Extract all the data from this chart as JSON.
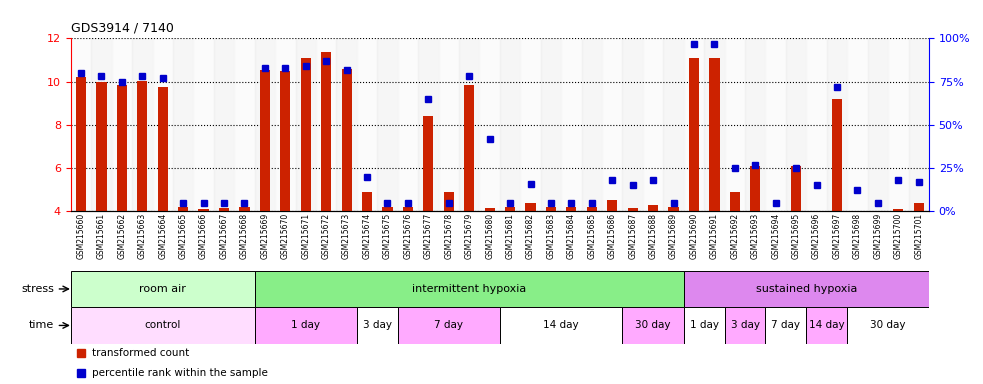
{
  "title": "GDS3914 / 7140",
  "samples": [
    "GSM215660",
    "GSM215661",
    "GSM215662",
    "GSM215663",
    "GSM215664",
    "GSM215665",
    "GSM215666",
    "GSM215667",
    "GSM215668",
    "GSM215669",
    "GSM215670",
    "GSM215671",
    "GSM215672",
    "GSM215673",
    "GSM215674",
    "GSM215675",
    "GSM215676",
    "GSM215677",
    "GSM215678",
    "GSM215679",
    "GSM215680",
    "GSM215681",
    "GSM215682",
    "GSM215683",
    "GSM215684",
    "GSM215685",
    "GSM215686",
    "GSM215687",
    "GSM215688",
    "GSM215689",
    "GSM215690",
    "GSM215691",
    "GSM215692",
    "GSM215693",
    "GSM215694",
    "GSM215695",
    "GSM215696",
    "GSM215697",
    "GSM215698",
    "GSM215699",
    "GSM215700",
    "GSM215701"
  ],
  "red_values": [
    10.2,
    10.0,
    9.85,
    10.05,
    9.75,
    4.2,
    4.1,
    4.15,
    4.2,
    10.55,
    10.5,
    11.1,
    11.35,
    10.6,
    4.9,
    4.2,
    4.2,
    8.4,
    4.9,
    9.85,
    4.15,
    4.2,
    4.4,
    4.2,
    4.2,
    4.2,
    4.5,
    4.15,
    4.3,
    4.2,
    11.1,
    11.1,
    4.9,
    6.1,
    4.0,
    6.1,
    4.0,
    9.2,
    4.0,
    4.0,
    4.1,
    4.4
  ],
  "blue_values": [
    80,
    78,
    75,
    78,
    77,
    5,
    5,
    5,
    5,
    83,
    83,
    84,
    87,
    82,
    20,
    5,
    5,
    65,
    5,
    78,
    42,
    5,
    16,
    5,
    5,
    5,
    18,
    15,
    18,
    5,
    97,
    97,
    25,
    27,
    5,
    25,
    15,
    72,
    12,
    5,
    18,
    17
  ],
  "ylim_left": [
    4,
    12
  ],
  "ylim_right": [
    0,
    100
  ],
  "yticks_left": [
    4,
    6,
    8,
    10,
    12
  ],
  "yticks_right": [
    0,
    25,
    50,
    75,
    100
  ],
  "ytick_labels_right": [
    "0%",
    "25%",
    "50%",
    "75%",
    "100%"
  ],
  "bar_color": "#cc2200",
  "dot_color": "#0000cc",
  "bg_color": "#f0f0f0",
  "stress_groups": [
    {
      "label": "room air",
      "start": 0,
      "end": 9,
      "color": "#ccffcc"
    },
    {
      "label": "intermittent hypoxia",
      "start": 9,
      "end": 30,
      "color": "#88ee88"
    },
    {
      "label": "sustained hypoxia",
      "start": 30,
      "end": 42,
      "color": "#dd88ee"
    }
  ],
  "time_groups": [
    {
      "label": "control",
      "start": 0,
      "end": 9,
      "color": "#ffddff"
    },
    {
      "label": "1 day",
      "start": 9,
      "end": 14,
      "color": "#ffaaff"
    },
    {
      "label": "3 day",
      "start": 14,
      "end": 16,
      "color": "#ffffff"
    },
    {
      "label": "7 day",
      "start": 16,
      "end": 21,
      "color": "#ffaaff"
    },
    {
      "label": "14 day",
      "start": 21,
      "end": 27,
      "color": "#ffffff"
    },
    {
      "label": "30 day",
      "start": 27,
      "end": 30,
      "color": "#ffaaff"
    },
    {
      "label": "1 day",
      "start": 30,
      "end": 32,
      "color": "#ffffff"
    },
    {
      "label": "3 day",
      "start": 32,
      "end": 34,
      "color": "#ffaaff"
    },
    {
      "label": "7 day",
      "start": 34,
      "end": 36,
      "color": "#ffffff"
    },
    {
      "label": "14 day",
      "start": 36,
      "end": 38,
      "color": "#ffaaff"
    },
    {
      "label": "30 day",
      "start": 38,
      "end": 42,
      "color": "#ffffff"
    }
  ],
  "legend_label_red": "transformed count",
  "legend_label_blue": "percentile rank within the sample"
}
